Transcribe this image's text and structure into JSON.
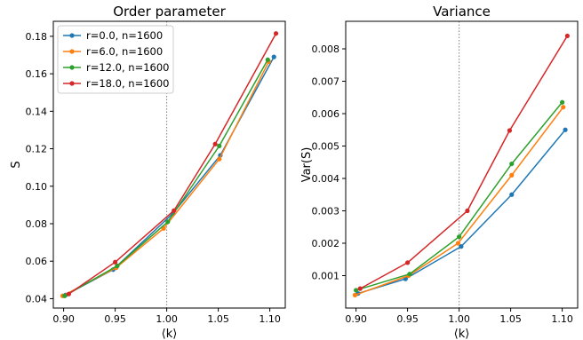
{
  "chart_data": [
    {
      "type": "line",
      "title": "Order parameter",
      "xlabel": "⟨k⟩",
      "ylabel": "S",
      "xlim": [
        0.89,
        1.115
      ],
      "ylim": [
        0.035,
        0.188
      ],
      "xticks": [
        0.9,
        0.95,
        1.0,
        1.05,
        1.1
      ],
      "xtick_labels": [
        "0.90",
        "0.95",
        "1.00",
        "1.05",
        "1.10"
      ],
      "yticks": [
        0.04,
        0.06,
        0.08,
        0.1,
        0.12,
        0.14,
        0.16,
        0.18
      ],
      "ytick_labels": [
        "0.04",
        "0.06",
        "0.08",
        "0.10",
        "0.12",
        "0.14",
        "0.16",
        "0.18"
      ],
      "vline_x": 1.0,
      "legend": "top-left",
      "series": [
        {
          "name": "r=0.0, n=1600",
          "color": "#1f77b4",
          "x": [
            0.902,
            0.948,
            1.006,
            1.052,
            1.104
          ],
          "y": [
            0.042,
            0.0555,
            0.0855,
            0.1165,
            0.169
          ]
        },
        {
          "name": "r=6.0, n=1600",
          "color": "#ff7f0e",
          "x": [
            0.899,
            0.951,
            0.997,
            1.051,
            1.099
          ],
          "y": [
            0.0415,
            0.0565,
            0.0775,
            0.1145,
            0.1665
          ]
        },
        {
          "name": "r=12.0, n=1600",
          "color": "#2ca02c",
          "x": [
            0.901,
            0.952,
            1.001,
            1.051,
            1.098
          ],
          "y": [
            0.0415,
            0.0575,
            0.081,
            0.1215,
            0.1675
          ]
        },
        {
          "name": "r=18.0, n=1600",
          "color": "#d62728",
          "x": [
            0.905,
            0.95,
            1.007,
            1.047,
            1.106
          ],
          "y": [
            0.0425,
            0.0595,
            0.087,
            0.1225,
            0.1815
          ]
        }
      ]
    },
    {
      "type": "line",
      "title": "Variance",
      "xlabel": "⟨k⟩",
      "ylabel": "Var(S)",
      "xlim": [
        0.89,
        1.115
      ],
      "ylim": [
        0.0,
        0.00885
      ],
      "xticks": [
        0.9,
        0.95,
        1.0,
        1.05,
        1.1
      ],
      "xtick_labels": [
        "0.90",
        "0.95",
        "1.00",
        "1.05",
        "1.10"
      ],
      "yticks": [
        0.001,
        0.002,
        0.003,
        0.004,
        0.005,
        0.006,
        0.007,
        0.008
      ],
      "ytick_labels": [
        "0.001",
        "0.002",
        "0.003",
        "0.004",
        "0.005",
        "0.006",
        "0.007",
        "0.008"
      ],
      "vline_x": 1.0,
      "series": [
        {
          "name": "r=0.0, n=1600",
          "color": "#1f77b4",
          "x": [
            0.902,
            0.948,
            1.002,
            1.051,
            1.103
          ],
          "y": [
            0.00045,
            0.0009,
            0.0019,
            0.0035,
            0.0055
          ]
        },
        {
          "name": "r=6.0, n=1600",
          "color": "#ff7f0e",
          "x": [
            0.899,
            0.951,
            0.999,
            1.051,
            1.101
          ],
          "y": [
            0.0004,
            0.001,
            0.002,
            0.0041,
            0.0062
          ]
        },
        {
          "name": "r=12.0, n=1600",
          "color": "#2ca02c",
          "x": [
            0.9,
            0.952,
            1.0,
            1.051,
            1.1
          ],
          "y": [
            0.00055,
            0.00105,
            0.0022,
            0.00445,
            0.00635
          ]
        },
        {
          "name": "r=18.0, n=1600",
          "color": "#d62728",
          "x": [
            0.904,
            0.95,
            1.008,
            1.049,
            1.105
          ],
          "y": [
            0.0006,
            0.0014,
            0.003,
            0.00548,
            0.0084
          ]
        }
      ]
    }
  ]
}
